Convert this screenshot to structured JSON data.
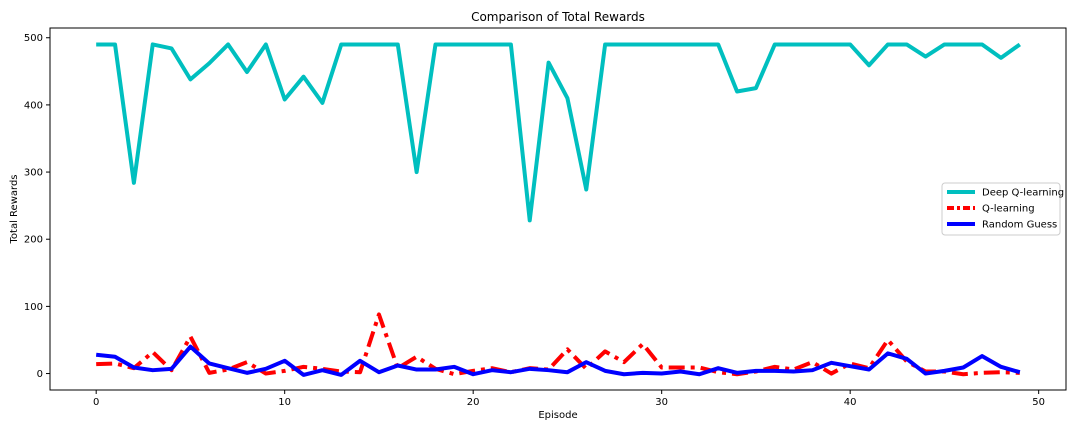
{
  "chart_data": {
    "type": "line",
    "title": "Comparison of Total Rewards",
    "xlabel": "Episode",
    "ylabel": "Total Rewards",
    "xlim": [
      -2.45,
      51.45
    ],
    "ylim": [
      -24.5,
      514.5
    ],
    "xticks": [
      0,
      10,
      20,
      30,
      40,
      50
    ],
    "yticks": [
      0,
      100,
      200,
      300,
      400,
      500
    ],
    "grid": false,
    "legend_position": "center-right",
    "x": [
      0,
      1,
      2,
      3,
      4,
      5,
      6,
      7,
      8,
      9,
      10,
      11,
      12,
      13,
      14,
      15,
      16,
      17,
      18,
      19,
      20,
      21,
      22,
      23,
      24,
      25,
      26,
      27,
      28,
      29,
      30,
      31,
      32,
      33,
      34,
      35,
      36,
      37,
      38,
      39,
      40,
      41,
      42,
      43,
      44,
      45,
      46,
      47,
      48,
      49
    ],
    "series": [
      {
        "name": "Deep Q-learning",
        "color": "#00bfbf",
        "style": "solid",
        "values": [
          490,
          490,
          284,
          490,
          484,
          438,
          462,
          490,
          449,
          490,
          408,
          442,
          403,
          490,
          490,
          490,
          490,
          300,
          490,
          490,
          490,
          490,
          490,
          228,
          463,
          410,
          274,
          490,
          490,
          490,
          490,
          490,
          490,
          490,
          420,
          425,
          490,
          490,
          490,
          490,
          490,
          459,
          490,
          490,
          472,
          490,
          490,
          490,
          470,
          490
        ]
      },
      {
        "name": "Q-learning",
        "color": "#ff0000",
        "style": "dashdot",
        "values": [
          14,
          15,
          8,
          32,
          5,
          55,
          1,
          6,
          17,
          0,
          4,
          10,
          7,
          3,
          2,
          88,
          8,
          25,
          7,
          -1,
          4,
          8,
          2,
          8,
          6,
          36,
          7,
          33,
          17,
          44,
          9,
          9,
          9,
          2,
          -1,
          3,
          10,
          6,
          17,
          0,
          15,
          8,
          50,
          18,
          3,
          3,
          -1,
          1,
          2,
          1
        ]
      },
      {
        "name": "Random Guess",
        "color": "#0000ff",
        "style": "solid",
        "values": [
          28,
          25,
          9,
          5,
          7,
          40,
          15,
          8,
          1,
          7,
          19,
          -2,
          5,
          -2,
          19,
          2,
          12,
          6,
          6,
          10,
          -1,
          5,
          2,
          7,
          5,
          2,
          17,
          4,
          -1,
          1,
          0,
          3,
          -1,
          8,
          1,
          4,
          4,
          3,
          5,
          16,
          11,
          6,
          30,
          22,
          0,
          4,
          9,
          26,
          10,
          2
        ]
      }
    ]
  }
}
